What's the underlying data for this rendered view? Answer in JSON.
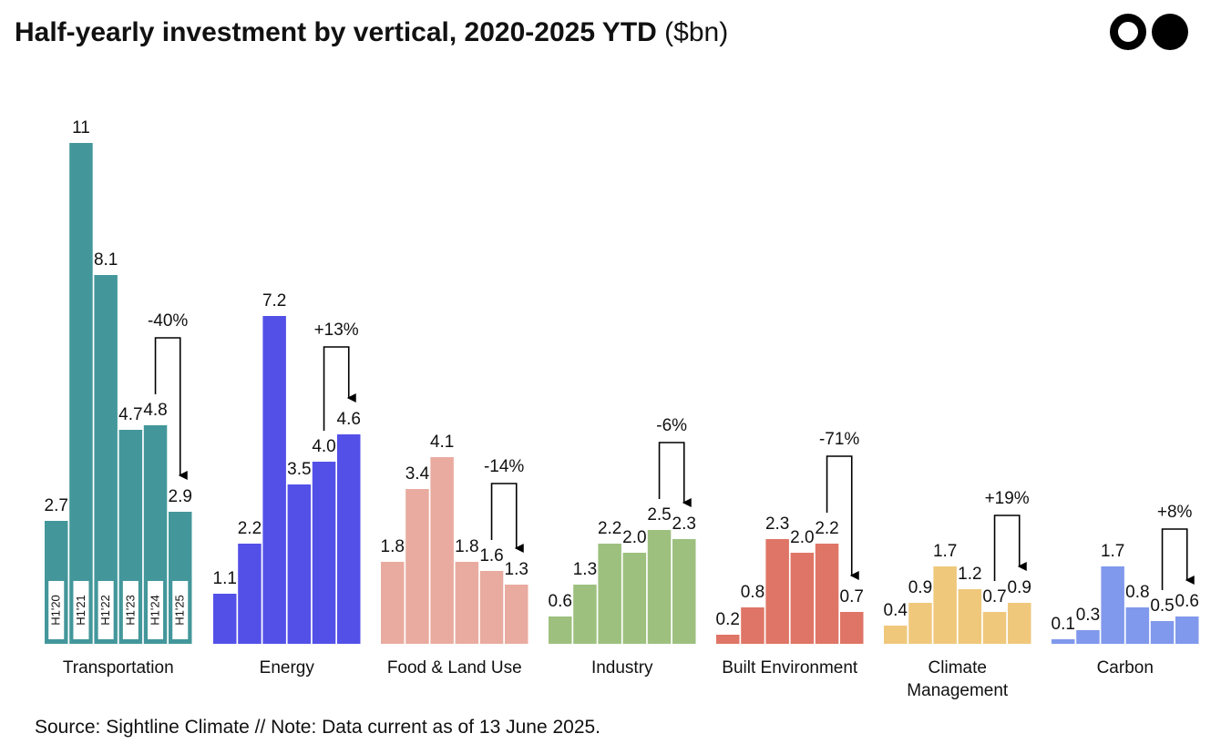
{
  "header": {
    "title_bold": "Half-yearly investment by vertical, 2020-2025 YTD",
    "title_unit": "($bn)"
  },
  "footer": {
    "source": "Source: Sightline Climate  //  Note: Data current as of 13 June 2025."
  },
  "chart_data": {
    "type": "bar",
    "title": "Half-yearly investment by vertical, 2020-2025 YTD ($bn)",
    "periods": [
      "H1'20",
      "H1'21",
      "H1'22",
      "H1'23",
      "H1'24",
      "H1'25"
    ],
    "ylim": [
      0,
      11
    ],
    "grid": false,
    "groups": [
      {
        "name": "Transportation",
        "label_lines": [
          "Transportation"
        ],
        "color": "#43979b",
        "values": [
          2.7,
          11,
          8.1,
          4.7,
          4.8,
          2.9
        ],
        "value_labels": [
          "2.7",
          "11",
          "8.1",
          "4.7",
          "4.8",
          "2.9"
        ],
        "change": "-40%"
      },
      {
        "name": "Energy",
        "label_lines": [
          "Energy"
        ],
        "color": "#5350e8",
        "values": [
          1.1,
          2.2,
          7.2,
          3.5,
          4.0,
          4.6
        ],
        "value_labels": [
          "1.1",
          "2.2",
          "7.2",
          "3.5",
          "4.0",
          "4.6"
        ],
        "change": "+13%"
      },
      {
        "name": "Food & Land Use",
        "label_lines": [
          "Food & Land Use"
        ],
        "color": "#e9aba0",
        "values": [
          1.8,
          3.4,
          4.1,
          1.8,
          1.6,
          1.3
        ],
        "value_labels": [
          "1.8",
          "3.4",
          "4.1",
          "1.8",
          "1.6",
          "1.3"
        ],
        "change": "-14%"
      },
      {
        "name": "Industry",
        "label_lines": [
          "Industry"
        ],
        "color": "#9dc07e",
        "values": [
          0.6,
          1.3,
          2.2,
          2.0,
          2.5,
          2.3
        ],
        "value_labels": [
          "0.6",
          "1.3",
          "2.2",
          "2.0",
          "2.5",
          "2.3"
        ],
        "change": "-6%"
      },
      {
        "name": "Built Environment",
        "label_lines": [
          "Built Environment"
        ],
        "color": "#df7566",
        "values": [
          0.2,
          0.8,
          2.3,
          2.0,
          2.2,
          0.7
        ],
        "value_labels": [
          "0.2",
          "0.8",
          "2.3",
          "2.0",
          "2.2",
          "0.7"
        ],
        "change": "-71%"
      },
      {
        "name": "Climate Management",
        "label_lines": [
          "Climate",
          "Management"
        ],
        "color": "#efc87c",
        "values": [
          0.4,
          0.9,
          1.7,
          1.2,
          0.7,
          0.9
        ],
        "value_labels": [
          "0.4",
          "0.9",
          "1.7",
          "1.2",
          "0.7",
          "0.9"
        ],
        "change": "+19%"
      },
      {
        "name": "Carbon",
        "label_lines": [
          "Carbon"
        ],
        "color": "#8099ec",
        "values": [
          0.1,
          0.3,
          1.7,
          0.8,
          0.5,
          0.6
        ],
        "value_labels": [
          "0.1",
          "0.3",
          "1.7",
          "0.8",
          "0.5",
          "0.6"
        ],
        "change": "+8%"
      }
    ]
  }
}
